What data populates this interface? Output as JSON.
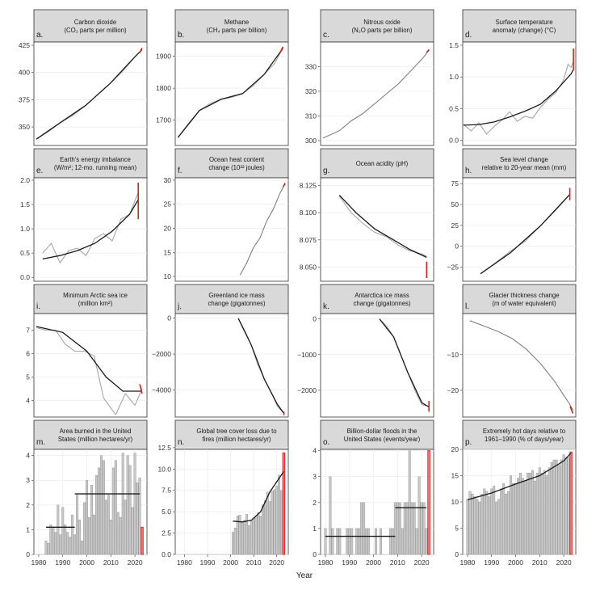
{
  "figure": {
    "xlabel": "Year"
  },
  "colors": {
    "raw": "#a6a6a6",
    "trend": "#1a1a1a",
    "recent": "#e0201b",
    "bar_fill": "#c8c8c8",
    "bar_stroke": "#8c8c8c",
    "series": "#808080"
  },
  "chart_data": [
    {
      "letter": "a.",
      "title": [
        "Carbon dioxide",
        "(CO₂ parts per million)"
      ],
      "type": "line",
      "xlim": [
        1979,
        2025
      ],
      "ylim": [
        333,
        428
      ],
      "yticks": [
        350,
        375,
        400,
        425
      ],
      "xticks": [],
      "x": [
        1980,
        1985,
        1990,
        1995,
        2000,
        2005,
        2010,
        2015,
        2020,
        2023
      ],
      "y": [
        338.8,
        346.0,
        354.4,
        360.8,
        369.7,
        379.8,
        389.9,
        400.8,
        414.2,
        421.1
      ],
      "trend": {
        "x": [
          1980,
          1990,
          2000,
          2010,
          2020,
          2023
        ],
        "y": [
          338.8,
          354.4,
          369.7,
          389.9,
          414.2,
          421.1
        ]
      },
      "recent": {
        "x": [
          2022,
          2023
        ],
        "y": [
          418.0,
          422.5
        ]
      }
    },
    {
      "letter": "b.",
      "title": [
        "Methane",
        "(CH₄ parts per billion)"
      ],
      "type": "line",
      "xlim": [
        1983,
        2025
      ],
      "ylim": [
        1620,
        1945
      ],
      "yticks": [
        1700,
        1800,
        1900
      ],
      "xticks": [],
      "x": [
        1984,
        1988,
        1992,
        1996,
        2000,
        2004,
        2008,
        2012,
        2016,
        2020,
        2023
      ],
      "y": [
        1645,
        1690,
        1730,
        1752,
        1765,
        1771,
        1783,
        1808,
        1843,
        1879,
        1925
      ],
      "trend": {
        "x": [
          1984,
          1992,
          2000,
          2008,
          2016,
          2023
        ],
        "y": [
          1645,
          1730,
          1765,
          1783,
          1843,
          1925
        ]
      },
      "recent": {
        "x": [
          2022,
          2023
        ],
        "y": [
          1912,
          1930
        ]
      }
    },
    {
      "letter": "c.",
      "title": [
        "Nitrous oxide",
        "(N₂O parts per billion)"
      ],
      "type": "line",
      "xlim": [
        1977,
        2025
      ],
      "ylim": [
        298,
        340
      ],
      "yticks": [
        300,
        310,
        320,
        330
      ],
      "xticks": [],
      "x": [
        1978,
        1985,
        1990,
        1995,
        2000,
        2005,
        2010,
        2015,
        2020,
        2023
      ],
      "y": [
        301,
        304,
        308,
        311,
        315,
        319,
        323,
        328,
        333,
        336.7
      ],
      "trend": null,
      "recent": {
        "x": [
          2022,
          2023
        ],
        "y": [
          335.8,
          336.9
        ]
      }
    },
    {
      "letter": "d.",
      "title": [
        "Surface temperature",
        "anomaly (change) (°C)"
      ],
      "type": "line",
      "xlim": [
        1879,
        2026
      ],
      "ylim": [
        -0.08,
        1.55
      ],
      "yticks": [
        0.0,
        0.5,
        1.0,
        1.5
      ],
      "xticks": [],
      "x": [
        1880,
        1890,
        1900,
        1910,
        1920,
        1930,
        1940,
        1950,
        1960,
        1970,
        1980,
        1990,
        2000,
        2010,
        2016,
        2020,
        2023
      ],
      "y": [
        0.25,
        0.15,
        0.28,
        0.1,
        0.22,
        0.32,
        0.45,
        0.3,
        0.38,
        0.35,
        0.52,
        0.65,
        0.75,
        0.95,
        1.2,
        1.15,
        1.25
      ],
      "trend": {
        "x": [
          1880,
          1900,
          1920,
          1940,
          1960,
          1980,
          2000,
          2020,
          2023
        ],
        "y": [
          0.24,
          0.25,
          0.29,
          0.37,
          0.46,
          0.57,
          0.78,
          1.05,
          1.12
        ]
      },
      "recent": {
        "x": [
          2023,
          2023
        ],
        "y": [
          1.1,
          1.45
        ]
      }
    },
    {
      "letter": "e.",
      "title": [
        "Earth's energy imbalance",
        "(W/m²; 12-mo. running mean)"
      ],
      "type": "line",
      "xlim": [
        1999,
        2025
      ],
      "ylim": [
        -0.08,
        2.05
      ],
      "yticks": [
        0.0,
        0.5,
        1.0,
        1.5,
        2.0
      ],
      "xticks": [],
      "x": [
        2001,
        2003,
        2005,
        2007,
        2009,
        2011,
        2013,
        2015,
        2017,
        2019,
        2021,
        2023
      ],
      "y": [
        0.5,
        0.7,
        0.3,
        0.55,
        0.6,
        0.45,
        0.8,
        0.9,
        0.75,
        1.2,
        1.3,
        1.75
      ],
      "trend": {
        "x": [
          2001,
          2005,
          2009,
          2013,
          2017,
          2021,
          2023
        ],
        "y": [
          0.38,
          0.45,
          0.55,
          0.7,
          0.95,
          1.3,
          1.6
        ]
      },
      "recent": {
        "x": [
          2023,
          2023
        ],
        "y": [
          1.2,
          1.95
        ]
      }
    },
    {
      "letter": "f.",
      "title": [
        "Ocean heat content",
        "change (10²² joules)"
      ],
      "type": "line",
      "xlim": [
        1957,
        2025
      ],
      "ylim": [
        9,
        30.5
      ],
      "yticks": [
        10,
        15,
        20,
        25,
        30
      ],
      "xticks": [],
      "x": [
        1996,
        2000,
        2004,
        2008,
        2012,
        2016,
        2020,
        2023
      ],
      "y": [
        10.3,
        12.8,
        16,
        18,
        21.5,
        24,
        27.3,
        29.2
      ],
      "trend": null,
      "recent": {
        "x": [
          2022,
          2023
        ],
        "y": [
          28.6,
          29.4
        ]
      }
    },
    {
      "letter": "g.",
      "title": [
        "Ocean acidity (pH)"
      ],
      "type": "line",
      "xlim": [
        1977,
        2025
      ],
      "ylim": [
        8.037,
        8.132
      ],
      "yticks": [
        8.05,
        8.075,
        8.1,
        8.125
      ],
      "xticks": [],
      "x": [
        1985,
        1990,
        1995,
        2000,
        2005,
        2010,
        2015,
        2020,
        2022
      ],
      "y": [
        8.115,
        8.1,
        8.09,
        8.082,
        8.078,
        8.07,
        8.065,
        8.062,
        8.06
      ],
      "trend": {
        "x": [
          1985,
          1992,
          2000,
          2008,
          2015,
          2022
        ],
        "y": [
          8.116,
          8.1,
          8.085,
          8.075,
          8.066,
          8.059
        ]
      },
      "recent": {
        "x": [
          2022,
          2022
        ],
        "y": [
          8.04,
          8.055
        ]
      }
    },
    {
      "letter": "h.",
      "title": [
        "Sea level change",
        "relative to 20-year mean (mm)"
      ],
      "type": "line",
      "xlim": [
        1987,
        2025
      ],
      "ylim": [
        -42,
        82
      ],
      "yticks": [
        -25,
        0,
        25,
        50,
        75
      ],
      "xticks": [],
      "x": [
        1993,
        1998,
        2003,
        2008,
        2013,
        2018,
        2023
      ],
      "y": [
        -33,
        -20,
        -6,
        6,
        24,
        42,
        62
      ],
      "trend": {
        "x": [
          1993,
          2003,
          2013,
          2023
        ],
        "y": [
          -33,
          -8,
          24,
          62
        ]
      },
      "recent": {
        "x": [
          2023,
          2023
        ],
        "y": [
          55,
          70
        ]
      }
    },
    {
      "letter": "i.",
      "title": [
        "Minimum Arctic sea ice",
        "(million km²)"
      ],
      "type": "line",
      "xlim": [
        1978,
        2025
      ],
      "ylim": [
        3.3,
        7.7
      ],
      "yticks": [
        4,
        5,
        6,
        7
      ],
      "xticks": [],
      "x": [
        1979,
        1983,
        1987,
        1991,
        1995,
        1999,
        2003,
        2007,
        2012,
        2016,
        2020,
        2023
      ],
      "y": [
        7.1,
        7.0,
        7.0,
        6.4,
        6.1,
        6.1,
        5.9,
        4.1,
        3.4,
        4.3,
        3.8,
        4.5
      ],
      "trend": {
        "x": [
          1979,
          1990,
          2000,
          2008,
          2015,
          2023
        ],
        "y": [
          7.15,
          6.9,
          6.1,
          5.0,
          4.4,
          4.4
        ]
      },
      "recent": {
        "x": [
          2022,
          2023
        ],
        "y": [
          4.7,
          4.3
        ]
      }
    },
    {
      "letter": "j.",
      "title": [
        "Greenland ice mass",
        "change (gigatonnes)"
      ],
      "type": "line",
      "xlim": [
        1973,
        2025
      ],
      "ylim": [
        -5500,
        250
      ],
      "yticks": [
        -4000,
        -2000,
        0
      ],
      "xticks": [],
      "x": [
        2002,
        2005,
        2008,
        2011,
        2014,
        2017,
        2020,
        2023
      ],
      "y": [
        0,
        -700,
        -1500,
        -2600,
        -3400,
        -4100,
        -4900,
        -5300
      ],
      "trend": {
        "x": [
          2002,
          2008,
          2014,
          2020,
          2023
        ],
        "y": [
          -20,
          -1500,
          -3400,
          -4800,
          -5300
        ]
      },
      "recent": {
        "x": [
          2023,
          2023
        ],
        "y": [
          -5200,
          -5400
        ]
      }
    },
    {
      "letter": "k.",
      "title": [
        "Antarctica ice mass",
        "change (gigatonnes)"
      ],
      "type": "line",
      "xlim": [
        1977,
        2025
      ],
      "ylim": [
        -2750,
        150
      ],
      "yticks": [
        -2000,
        -1000,
        0
      ],
      "xticks": [],
      "x": [
        2002,
        2005,
        2008,
        2011,
        2014,
        2017,
        2020,
        2023
      ],
      "y": [
        0,
        -200,
        -500,
        -1000,
        -1500,
        -2000,
        -2400,
        -2450
      ],
      "trend": {
        "x": [
          2002,
          2008,
          2014,
          2020,
          2023
        ],
        "y": [
          0,
          -500,
          -1500,
          -2350,
          -2470
        ]
      },
      "recent": {
        "x": [
          2023,
          2023
        ],
        "y": [
          -2300,
          -2600
        ]
      }
    },
    {
      "letter": "l.",
      "title": [
        "Glacier thickness change",
        "(m of water equivalent)"
      ],
      "type": "line",
      "xlim": [
        1945,
        2025
      ],
      "ylim": [
        -27.5,
        1.5
      ],
      "yticks": [
        -20,
        -10
      ],
      "xticks": [],
      "x": [
        1950,
        1960,
        1970,
        1980,
        1990,
        2000,
        2010,
        2020,
        2023
      ],
      "y": [
        -0.5,
        -2,
        -3.5,
        -5.5,
        -8.5,
        -12.5,
        -17.5,
        -23.5,
        -25.5
      ],
      "trend": null,
      "recent": {
        "x": [
          2021,
          2023
        ],
        "y": [
          -24.5,
          -26.5
        ]
      }
    },
    {
      "letter": "m.",
      "title": [
        "Area burned in the United",
        "States (million hectares/yr)"
      ],
      "type": "bar",
      "xlim": [
        1978,
        2025
      ],
      "ylim": [
        0,
        4.25
      ],
      "yticks": [
        0,
        1,
        2,
        3,
        4
      ],
      "xticks": [
        1980,
        1990,
        2000,
        2010,
        2020
      ],
      "x": [
        1983,
        1984,
        1985,
        1986,
        1987,
        1988,
        1989,
        1990,
        1991,
        1992,
        1993,
        1994,
        1995,
        1996,
        1997,
        1998,
        1999,
        2000,
        2001,
        2002,
        2003,
        2004,
        2005,
        2006,
        2007,
        2008,
        2009,
        2010,
        2011,
        2012,
        2013,
        2014,
        2015,
        2016,
        2017,
        2018,
        2019,
        2020,
        2021,
        2022,
        2023
      ],
      "y": [
        0.55,
        0.45,
        1.2,
        1.1,
        0.9,
        2.0,
        0.8,
        1.9,
        1.2,
        0.9,
        0.7,
        1.6,
        0.8,
        2.4,
        1.4,
        0.55,
        2.1,
        3.0,
        1.5,
        2.8,
        1.6,
        3.2,
        3.5,
        4.0,
        3.8,
        2.2,
        2.4,
        1.4,
        3.5,
        3.8,
        1.7,
        1.5,
        4.1,
        2.2,
        4.0,
        3.6,
        1.9,
        4.1,
        2.9,
        3.1,
        1.1
      ],
      "highlight_index": 40,
      "steps": [
        {
          "x": [
            1983,
            1995
          ],
          "y": 1.1
        },
        {
          "x": [
            1995,
            2022
          ],
          "y": 2.45
        }
      ]
    },
    {
      "letter": "n.",
      "title": [
        "Global tree cover loss due to",
        "fires (million hectares/yr)"
      ],
      "type": "bar",
      "xlim": [
        1976,
        2025
      ],
      "ylim": [
        0,
        12.3
      ],
      "yticks": [
        0.0,
        2.5,
        5.0,
        7.5,
        10.0,
        12.5
      ],
      "xticks": [
        1980,
        1990,
        2000,
        2010,
        2020
      ],
      "x": [
        2001,
        2002,
        2003,
        2004,
        2005,
        2006,
        2007,
        2008,
        2009,
        2010,
        2011,
        2012,
        2013,
        2014,
        2015,
        2016,
        2017,
        2018,
        2019,
        2020,
        2021,
        2022,
        2023
      ],
      "y": [
        2.6,
        3.1,
        4.5,
        4.6,
        3.7,
        4.0,
        4.7,
        3.4,
        3.9,
        4.3,
        4.5,
        4.9,
        4.5,
        5.8,
        6.3,
        7.3,
        6.2,
        7.4,
        7.6,
        8.0,
        9.3,
        7.5,
        11.9
      ],
      "highlight_index": 22,
      "trend": {
        "x": [
          2001,
          2005,
          2009,
          2013,
          2017,
          2021,
          2023
        ],
        "y": [
          3.9,
          3.8,
          4.0,
          5.0,
          7.3,
          8.9,
          9.7
        ]
      }
    },
    {
      "letter": "o.",
      "title": [
        "Billion-dollar floods in the",
        "United States (events/year)"
      ],
      "type": "bar",
      "xlim": [
        1978,
        2025
      ],
      "ylim": [
        0,
        4.05
      ],
      "yticks": [
        0,
        1,
        2,
        3,
        4
      ],
      "xticks": [
        1980,
        1990,
        2000,
        2010,
        2020
      ],
      "x": [
        1980,
        1981,
        1982,
        1983,
        1984,
        1985,
        1986,
        1987,
        1988,
        1989,
        1990,
        1991,
        1992,
        1993,
        1994,
        1995,
        1996,
        1997,
        1998,
        1999,
        2000,
        2001,
        2002,
        2003,
        2004,
        2005,
        2006,
        2007,
        2008,
        2009,
        2010,
        2011,
        2012,
        2013,
        2014,
        2015,
        2016,
        2017,
        2018,
        2019,
        2020,
        2021,
        2022,
        2023
      ],
      "y": [
        1,
        0,
        3,
        1,
        0,
        1,
        1,
        0,
        0,
        1,
        1,
        1,
        0,
        1,
        1,
        2,
        2,
        1,
        1,
        0,
        0,
        1,
        0,
        1,
        0,
        0,
        0,
        1,
        1,
        2,
        2,
        2,
        1,
        2,
        2,
        4,
        2,
        2,
        1,
        3,
        2,
        2,
        1,
        4
      ],
      "highlight_index": 43,
      "steps": [
        {
          "x": [
            1980,
            2009
          ],
          "y": 0.7
        },
        {
          "x": [
            2009,
            2022
          ],
          "y": 1.8
        }
      ]
    },
    {
      "letter": "p.",
      "title": [
        "Extremely hot days relative to",
        "1961–1990 (% of days/year)"
      ],
      "type": "bar",
      "xlim": [
        1978,
        2025
      ],
      "ylim": [
        0,
        20
      ],
      "yticks": [
        0,
        5,
        10,
        15,
        20
      ],
      "xticks": [
        1980,
        1990,
        2000,
        2010,
        2020
      ],
      "x": [
        1980,
        1981,
        1982,
        1983,
        1984,
        1985,
        1986,
        1987,
        1988,
        1989,
        1990,
        1991,
        1992,
        1993,
        1994,
        1995,
        1996,
        1997,
        1998,
        1999,
        2000,
        2001,
        2002,
        2003,
        2004,
        2005,
        2006,
        2007,
        2008,
        2009,
        2010,
        2011,
        2012,
        2013,
        2014,
        2015,
        2016,
        2017,
        2018,
        2019,
        2020,
        2021,
        2022,
        2023
      ],
      "y": [
        10.5,
        12.0,
        11.5,
        11.0,
        10.5,
        10.0,
        11.5,
        12.5,
        12.0,
        11.0,
        12.5,
        13.0,
        10.0,
        10.5,
        12.5,
        13.5,
        11.5,
        12.0,
        15.0,
        13.5,
        13.5,
        14.5,
        15.5,
        14.5,
        14.0,
        15.5,
        15.5,
        16.0,
        14.0,
        15.5,
        16.5,
        15.5,
        16.0,
        15.0,
        16.5,
        17.5,
        18.0,
        18.0,
        17.0,
        18.0,
        19.0,
        18.5,
        18.5,
        19.5
      ],
      "highlight_index": 43,
      "trend": {
        "x": [
          1980,
          1990,
          2000,
          2010,
          2020,
          2023
        ],
        "y": [
          10.4,
          11.7,
          13.4,
          15.0,
          17.8,
          19.3
        ]
      }
    }
  ]
}
